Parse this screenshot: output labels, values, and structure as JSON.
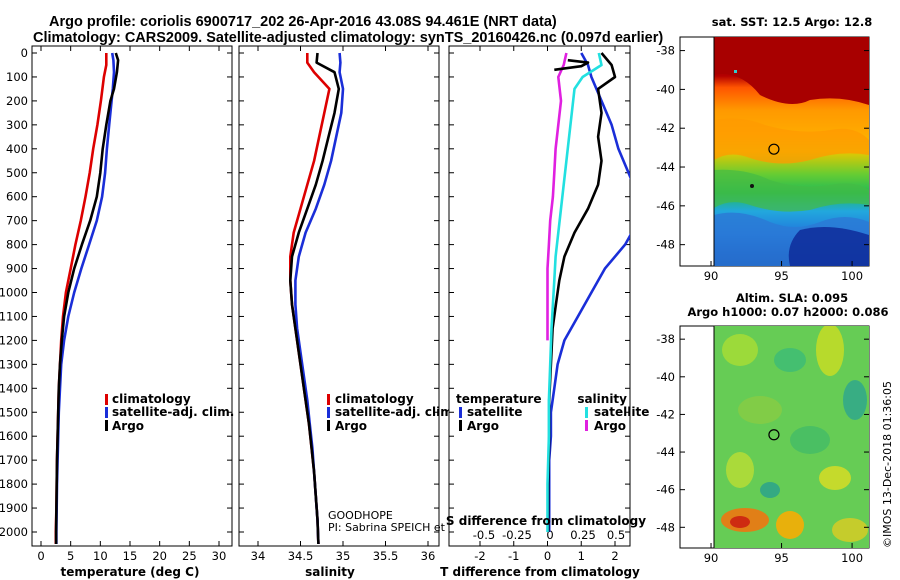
{
  "title": {
    "line1": "Argo profile: coriolis 6900717_202 26-Apr-2016 43.08S 94.461E (NRT data)",
    "line2": "Climatology: CARS2009. Satellite-adjusted climatology: synTS_20160426.nc (0.097d earlier)"
  },
  "colors": {
    "climatology": "#dd0000",
    "satellite": "#1a2ed8",
    "argo": "#000000",
    "salinity_satellite": "#22e0e0",
    "salinity_argo": "#e020e0"
  },
  "chart_data": [
    {
      "type": "line",
      "name": "temperature",
      "xlabel": "temperature (deg C)",
      "ylabel": "",
      "xlim": [
        -1.5,
        31.5
      ],
      "ylim": [
        2070,
        0
      ],
      "xticks": [
        "0",
        "5",
        "10",
        "15",
        "20",
        "25",
        "30"
      ],
      "yticks": [
        "0",
        "100",
        "200",
        "300",
        "400",
        "500",
        "600",
        "700",
        "800",
        "900",
        "1000",
        "1100",
        "1200",
        "1300",
        "1400",
        "1500",
        "1600",
        "1700",
        "1800",
        "1900",
        "2000"
      ],
      "legend": [
        "climatology",
        "satellite-adj. clim.",
        "Argo"
      ],
      "series": [
        {
          "name": "climatology",
          "color": "#dd0000",
          "points": [
            [
              11.0,
              0
            ],
            [
              11.0,
              50
            ],
            [
              10.6,
              100
            ],
            [
              10.1,
              200
            ],
            [
              9.5,
              300
            ],
            [
              8.8,
              400
            ],
            [
              8.2,
              500
            ],
            [
              7.5,
              600
            ],
            [
              6.7,
              700
            ],
            [
              5.8,
              800
            ],
            [
              5.0,
              900
            ],
            [
              4.2,
              1000
            ],
            [
              3.7,
              1100
            ],
            [
              3.4,
              1200
            ],
            [
              3.2,
              1300
            ],
            [
              3.0,
              1400
            ],
            [
              2.9,
              1500
            ],
            [
              2.8,
              1600
            ],
            [
              2.7,
              1700
            ],
            [
              2.65,
              1800
            ],
            [
              2.6,
              1900
            ],
            [
              2.5,
              2000
            ],
            [
              2.5,
              2050
            ]
          ]
        },
        {
          "name": "satellite-adj. clim.",
          "color": "#1a2ed8",
          "points": [
            [
              12.0,
              0
            ],
            [
              12.2,
              30
            ],
            [
              12.3,
              80
            ],
            [
              12.1,
              150
            ],
            [
              11.9,
              200
            ],
            [
              11.5,
              300
            ],
            [
              11.1,
              400
            ],
            [
              10.8,
              500
            ],
            [
              10.3,
              600
            ],
            [
              9.4,
              700
            ],
            [
              8.1,
              800
            ],
            [
              6.8,
              900
            ],
            [
              5.6,
              1000
            ],
            [
              4.6,
              1100
            ],
            [
              3.9,
              1200
            ],
            [
              3.4,
              1300
            ],
            [
              3.2,
              1400
            ],
            [
              3.0,
              1500
            ],
            [
              2.9,
              1600
            ],
            [
              2.8,
              1700
            ],
            [
              2.7,
              1800
            ],
            [
              2.65,
              1900
            ],
            [
              2.6,
              2000
            ],
            [
              2.6,
              2050
            ]
          ]
        },
        {
          "name": "Argo",
          "color": "#000000",
          "points": [
            [
              12.6,
              0
            ],
            [
              13.0,
              30
            ],
            [
              12.8,
              80
            ],
            [
              12.3,
              150
            ],
            [
              11.7,
              200
            ],
            [
              11.0,
              300
            ],
            [
              10.4,
              400
            ],
            [
              10.0,
              500
            ],
            [
              9.4,
              600
            ],
            [
              8.3,
              700
            ],
            [
              6.9,
              800
            ],
            [
              5.6,
              900
            ],
            [
              4.6,
              1000
            ],
            [
              3.9,
              1100
            ],
            [
              3.5,
              1200
            ],
            [
              3.2,
              1300
            ],
            [
              3.0,
              1400
            ],
            [
              2.9,
              1500
            ],
            [
              2.8,
              1600
            ],
            [
              2.7,
              1700
            ],
            [
              2.65,
              1800
            ],
            [
              2.6,
              1900
            ],
            [
              2.55,
              2000
            ],
            [
              2.55,
              2050
            ]
          ]
        }
      ]
    },
    {
      "type": "line",
      "name": "salinity",
      "xlabel": "salinity",
      "xlim": [
        33.8,
        36.2
      ],
      "ylim": [
        2070,
        0
      ],
      "xticks": [
        "34",
        "34.5",
        "35",
        "35.5",
        "36"
      ],
      "legend": [
        "climatology",
        "satellite-adj. clim.",
        "Argo"
      ],
      "annotations": [
        "GOODHOPE",
        "PI: Sabrina SPEICH et Michel ARHAN"
      ],
      "series": [
        {
          "name": "climatology",
          "color": "#dd0000",
          "points": [
            [
              34.58,
              0
            ],
            [
              34.58,
              40
            ],
            [
              34.66,
              80
            ],
            [
              34.84,
              150
            ],
            [
              34.78,
              250
            ],
            [
              34.72,
              350
            ],
            [
              34.66,
              450
            ],
            [
              34.58,
              550
            ],
            [
              34.5,
              650
            ],
            [
              34.42,
              750
            ],
            [
              34.38,
              850
            ],
            [
              34.38,
              950
            ],
            [
              34.4,
              1050
            ],
            [
              34.44,
              1150
            ],
            [
              34.48,
              1250
            ],
            [
              34.52,
              1350
            ],
            [
              34.56,
              1450
            ],
            [
              34.6,
              1550
            ],
            [
              34.63,
              1650
            ],
            [
              34.66,
              1750
            ],
            [
              34.68,
              1850
            ],
            [
              34.7,
              1950
            ],
            [
              34.71,
              2050
            ]
          ]
        },
        {
          "name": "satellite-adj. clim.",
          "color": "#1a2ed8",
          "points": [
            [
              34.96,
              0
            ],
            [
              34.97,
              40
            ],
            [
              34.96,
              80
            ],
            [
              35.0,
              150
            ],
            [
              34.98,
              250
            ],
            [
              34.92,
              350
            ],
            [
              34.86,
              450
            ],
            [
              34.78,
              550
            ],
            [
              34.68,
              650
            ],
            [
              34.56,
              750
            ],
            [
              34.48,
              850
            ],
            [
              34.44,
              950
            ],
            [
              34.44,
              1050
            ],
            [
              34.46,
              1150
            ],
            [
              34.5,
              1250
            ],
            [
              34.54,
              1350
            ],
            [
              34.58,
              1450
            ],
            [
              34.61,
              1550
            ],
            [
              34.64,
              1650
            ],
            [
              34.66,
              1750
            ],
            [
              34.68,
              1850
            ],
            [
              34.7,
              1950
            ],
            [
              34.71,
              2050
            ]
          ]
        },
        {
          "name": "Argo",
          "color": "#000000",
          "points": [
            [
              34.7,
              0
            ],
            [
              34.69,
              40
            ],
            [
              34.9,
              80
            ],
            [
              34.95,
              150
            ],
            [
              34.9,
              250
            ],
            [
              34.83,
              350
            ],
            [
              34.76,
              450
            ],
            [
              34.68,
              550
            ],
            [
              34.58,
              650
            ],
            [
              34.48,
              750
            ],
            [
              34.4,
              850
            ],
            [
              34.38,
              950
            ],
            [
              34.4,
              1050
            ],
            [
              34.44,
              1150
            ],
            [
              34.48,
              1250
            ],
            [
              34.52,
              1350
            ],
            [
              34.56,
              1450
            ],
            [
              34.6,
              1550
            ],
            [
              34.63,
              1650
            ],
            [
              34.66,
              1750
            ],
            [
              34.68,
              1850
            ],
            [
              34.7,
              1950
            ],
            [
              34.71,
              2050
            ]
          ]
        }
      ]
    },
    {
      "type": "line",
      "name": "differences",
      "xlabel": "T difference from climatology",
      "xlabel_top": "S difference from climatology",
      "xlim": [
        -2.7,
        3.0
      ],
      "ylim": [
        2070,
        0
      ],
      "xticks": [
        "-2",
        "-1",
        "0",
        "1",
        "2"
      ],
      "xticks_top": [
        "-0.5",
        "-0.25",
        "0",
        "0.25",
        "0.5"
      ],
      "legend_temperature": {
        "title": "temperature",
        "items": [
          "satellite",
          "Argo"
        ]
      },
      "legend_salinity": {
        "title": "salinity",
        "items": [
          "satellite",
          "Argo"
        ]
      },
      "series": [
        {
          "name": "T satellite",
          "color": "#1a2ed8",
          "points": [
            [
              1.0,
              0
            ],
            [
              1.2,
              50
            ],
            [
              1.3,
              100
            ],
            [
              1.6,
              200
            ],
            [
              1.9,
              300
            ],
            [
              2.1,
              400
            ],
            [
              2.4,
              500
            ],
            [
              2.7,
              600
            ],
            [
              2.7,
              700
            ],
            [
              2.3,
              800
            ],
            [
              1.7,
              900
            ],
            [
              1.3,
              1000
            ],
            [
              0.9,
              1100
            ],
            [
              0.5,
              1200
            ],
            [
              0.3,
              1300
            ],
            [
              0.2,
              1400
            ],
            [
              0.1,
              1500
            ],
            [
              0.1,
              1600
            ],
            [
              0.05,
              1700
            ],
            [
              0.05,
              1800
            ],
            [
              0.05,
              1900
            ],
            [
              0.05,
              2000
            ]
          ]
        },
        {
          "name": "T Argo",
          "color": "#000000",
          "points": [
            [
              1.6,
              0
            ],
            [
              1.9,
              50
            ],
            [
              2.0,
              100
            ],
            [
              1.5,
              150
            ],
            [
              1.6,
              250
            ],
            [
              1.5,
              350
            ],
            [
              1.6,
              450
            ],
            [
              1.5,
              550
            ],
            [
              1.2,
              650
            ],
            [
              0.8,
              750
            ],
            [
              0.5,
              850
            ],
            [
              0.35,
              950
            ],
            [
              0.25,
              1050
            ],
            [
              0.15,
              1150
            ],
            [
              0.1,
              1300
            ],
            [
              0.05,
              1450
            ],
            [
              0.05,
              1600
            ],
            [
              0.02,
              1800
            ],
            [
              0.02,
              2000
            ]
          ]
        },
        {
          "name": "S satellite",
          "color": "#22e0e0",
          "points": [
            [
              0.38,
              0
            ],
            [
              0.4,
              50
            ],
            [
              0.26,
              100
            ],
            [
              0.2,
              150
            ],
            [
              0.18,
              250
            ],
            [
              0.16,
              350
            ],
            [
              0.14,
              450
            ],
            [
              0.12,
              550
            ],
            [
              0.1,
              650
            ],
            [
              0.08,
              750
            ],
            [
              0.06,
              850
            ],
            [
              0.05,
              950
            ],
            [
              0.04,
              1050
            ],
            [
              0.03,
              1150
            ],
            [
              0.02,
              1300
            ],
            [
              0.01,
              1450
            ],
            [
              0.01,
              1600
            ],
            [
              0.0,
              1800
            ],
            [
              0.0,
              2000
            ]
          ]
        },
        {
          "name": "S Argo",
          "color": "#e020e0",
          "points": [
            [
              0.14,
              0
            ],
            [
              0.12,
              50
            ],
            [
              0.08,
              100
            ],
            [
              0.1,
              200
            ],
            [
              0.08,
              300
            ],
            [
              0.06,
              400
            ],
            [
              0.05,
              500
            ],
            [
              0.04,
              600
            ],
            [
              0.02,
              700
            ],
            [
              0.01,
              800
            ],
            [
              0.0,
              900
            ],
            [
              0.0,
              1000
            ],
            [
              0.0,
              1100
            ],
            [
              0.0,
              1200
            ]
          ]
        },
        {
          "name": "S Argo top",
          "color": "#000000",
          "points": [
            [
              0.15,
              30
            ],
            [
              0.3,
              40
            ],
            [
              0.25,
              55
            ],
            [
              0.05,
              70
            ]
          ]
        }
      ]
    },
    {
      "type": "heatmap",
      "name": "sst_map",
      "title": "sat. SST: 12.5 Argo: 12.8",
      "xticks": [
        "90",
        "95",
        "100"
      ],
      "yticks": [
        "-38",
        "-40",
        "-42",
        "-44",
        "-46",
        "-48"
      ],
      "marker": [
        94.46,
        -43.08
      ]
    },
    {
      "type": "heatmap",
      "name": "sla_map",
      "title_line1": "Altim. SLA: 0.095",
      "title_line2": "Argo h1000: 0.07 h2000: 0.086",
      "xticks": [
        "90",
        "95",
        "100"
      ],
      "yticks": [
        "-38",
        "-40",
        "-42",
        "-44",
        "-46",
        "-48"
      ],
      "marker": [
        94.46,
        -43.08
      ]
    }
  ],
  "credit": "©IMOS 13-Dec-2018 01:36:05"
}
